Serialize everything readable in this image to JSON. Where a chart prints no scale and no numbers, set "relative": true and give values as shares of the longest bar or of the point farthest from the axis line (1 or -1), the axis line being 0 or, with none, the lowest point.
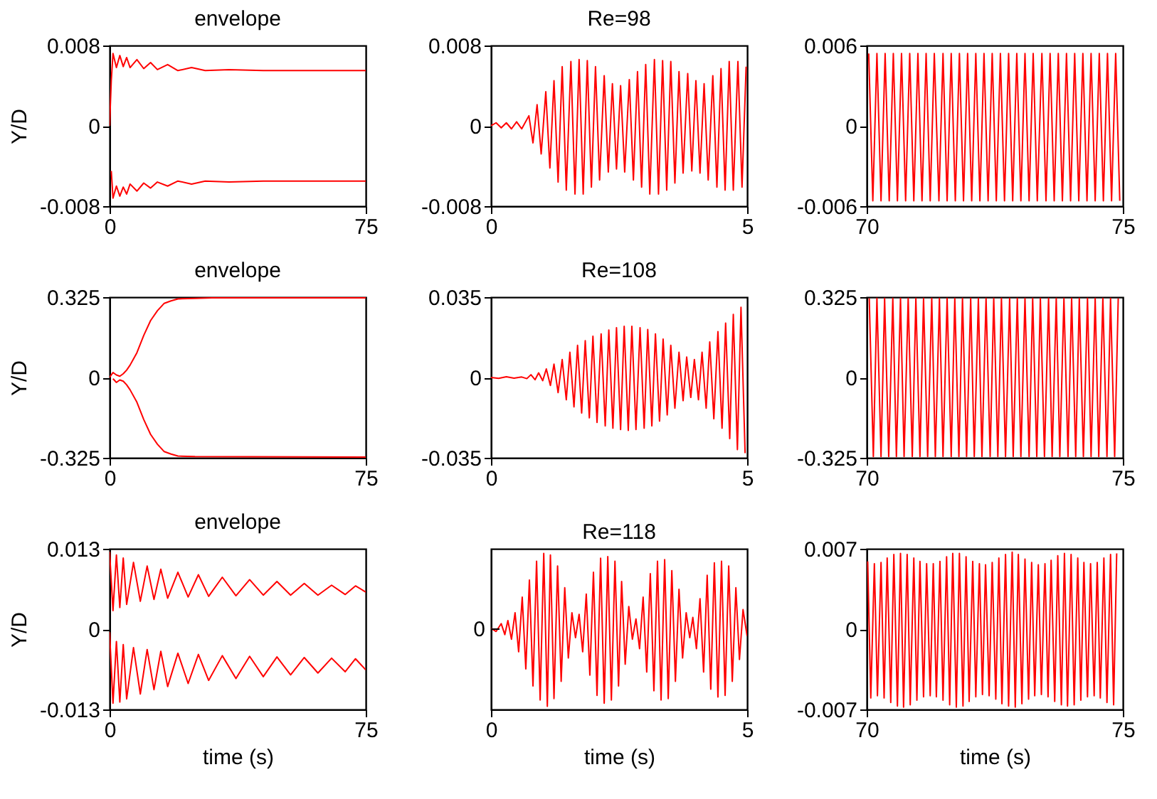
{
  "chart_data": [
    {
      "type": "line",
      "title": "envelope",
      "ylabel": "Y/D",
      "xlim": [
        0,
        75
      ],
      "ylim": [
        -0.008,
        0.008
      ],
      "xticks": [
        0,
        75
      ],
      "yticks": [
        -0.008,
        0,
        0.008
      ],
      "series": [
        {
          "color": "#ff0000",
          "x": [
            0,
            0.5,
            1,
            2,
            3,
            4,
            5,
            6,
            8,
            10,
            12,
            14,
            17,
            20,
            24,
            28,
            35,
            45,
            55,
            65,
            75
          ],
          "values": [
            0,
            0.0045,
            0.0072,
            0.0058,
            0.007,
            0.0059,
            0.0068,
            0.0058,
            0.0066,
            0.0057,
            0.0063,
            0.0056,
            0.0061,
            0.0055,
            0.0058,
            0.0055,
            0.0056,
            0.0055,
            0.0055,
            0.0055,
            0.0055
          ]
        },
        {
          "color": "#ff0000",
          "x": [
            0.5,
            1,
            2,
            3,
            4,
            5,
            6,
            8,
            10,
            12,
            14,
            17,
            20,
            24,
            28,
            35,
            45,
            75
          ],
          "values": [
            -0.0045,
            -0.0072,
            -0.006,
            -0.007,
            -0.0061,
            -0.0068,
            -0.0058,
            -0.0065,
            -0.0057,
            -0.0062,
            -0.0056,
            -0.006,
            -0.0055,
            -0.0058,
            -0.0055,
            -0.0056,
            -0.0055,
            -0.0055
          ]
        }
      ]
    },
    {
      "type": "line",
      "title": "Re=98",
      "xlim": [
        0,
        5
      ],
      "ylim": [
        -0.008,
        0.008
      ],
      "xticks": [
        0,
        5
      ],
      "yticks": [
        -0.008,
        0,
        0.008
      ],
      "series": [
        {
          "color": "#ff0000",
          "x": [
            0,
            0.1,
            0.2,
            0.3,
            0.4,
            0.5,
            0.6,
            0.74,
            0.82,
            0.9,
            0.98,
            1.07,
            1.15,
            1.23,
            1.31,
            1.39,
            1.47,
            1.56,
            1.64,
            1.72,
            1.8,
            1.88,
            1.96,
            2.04,
            2.12,
            2.21,
            2.29,
            2.37,
            2.45,
            2.53,
            2.61,
            2.7,
            2.78,
            2.86,
            2.94,
            3.02,
            3.1,
            3.19,
            3.27,
            3.35,
            3.43,
            3.51,
            3.59,
            3.67,
            3.75,
            3.84,
            3.92,
            4.0,
            4.08,
            4.16,
            4.24,
            4.33,
            4.41,
            4.49,
            4.57,
            4.65,
            4.73,
            4.82,
            4.9,
            4.98
          ],
          "values": [
            0,
            0.0003,
            -0.0002,
            0.0003,
            -0.0003,
            0.0004,
            -0.0003,
            0.001,
            -0.0017,
            0.0021,
            -0.0028,
            0.0034,
            -0.0042,
            0.0045,
            -0.0056,
            0.0059,
            -0.0064,
            0.0064,
            -0.0068,
            0.0066,
            -0.0068,
            0.0065,
            -0.0061,
            0.0059,
            -0.0054,
            0.005,
            -0.0046,
            0.0042,
            -0.0043,
            0.004,
            -0.0046,
            0.0046,
            -0.0054,
            0.0054,
            -0.0061,
            0.0061,
            -0.0068,
            0.0066,
            -0.0068,
            0.0065,
            -0.0064,
            0.0064,
            -0.0057,
            0.0054,
            -0.0047,
            0.0052,
            -0.0045,
            0.0045,
            -0.0047,
            0.0042,
            -0.0054,
            0.005,
            -0.0061,
            0.0057,
            -0.0064,
            0.0064,
            -0.0064,
            0.0064,
            -0.0061,
            0.0059
          ]
        }
      ]
    },
    {
      "type": "line",
      "xlim": [
        70,
        75
      ],
      "ylim": [
        -0.006,
        0.006
      ],
      "xticks": [
        70,
        75
      ],
      "yticks": [
        -0.006,
        0,
        0.006
      ],
      "series": [
        {
          "color": "#ff0000",
          "x": [
            70.04,
            70.12,
            70.2,
            70.28,
            70.36,
            70.44,
            70.52,
            70.6,
            70.68,
            70.76,
            70.84,
            70.92,
            71.0,
            71.08,
            71.16,
            71.24,
            71.32,
            71.41,
            71.49,
            71.57,
            71.65,
            71.73,
            71.81,
            71.89,
            71.97,
            72.05,
            72.13,
            72.21,
            72.29,
            72.37,
            72.45,
            72.53,
            72.61,
            72.69,
            72.77,
            72.85,
            72.93,
            73.01,
            73.09,
            73.17,
            73.25,
            73.33,
            73.42,
            73.5,
            73.58,
            73.66,
            73.74,
            73.82,
            73.9,
            73.98,
            74.06,
            74.14,
            74.22,
            74.3,
            74.38,
            74.46,
            74.54,
            74.62,
            74.7,
            74.78,
            74.86,
            74.94
          ],
          "values": [
            0.0054,
            -0.0056,
            0.0054,
            -0.0056,
            0.0054,
            -0.0056,
            0.0054,
            -0.0056,
            0.0054,
            -0.0056,
            0.0054,
            -0.0056,
            0.0054,
            -0.0056,
            0.0054,
            -0.0056,
            0.0054,
            -0.0056,
            0.0054,
            -0.0056,
            0.0054,
            -0.0056,
            0.0054,
            -0.0056,
            0.0054,
            -0.0056,
            0.0054,
            -0.0056,
            0.0054,
            -0.0056,
            0.0054,
            -0.0056,
            0.0054,
            -0.0056,
            0.0054,
            -0.0056,
            0.0054,
            -0.0056,
            0.0054,
            -0.0056,
            0.0054,
            -0.0056,
            0.0054,
            -0.0056,
            0.0054,
            -0.0056,
            0.0054,
            -0.0056,
            0.0054,
            -0.0056,
            0.0054,
            -0.0056,
            0.0054,
            -0.0056,
            0.0054,
            -0.0056,
            0.0054,
            -0.0056,
            0.0054,
            -0.0056,
            0.0054,
            -0.0056
          ]
        }
      ]
    },
    {
      "type": "line",
      "title": "envelope",
      "ylabel": "Y/D",
      "xlim": [
        0,
        75
      ],
      "ylim": [
        -0.325,
        0.325
      ],
      "xticks": [
        0,
        75
      ],
      "yticks": [
        -0.325,
        0,
        0.325
      ],
      "series": [
        {
          "color": "#ff0000",
          "x": [
            0,
            1,
            2,
            3,
            4,
            5,
            6,
            8,
            10,
            12,
            14,
            16,
            18,
            20,
            25,
            30,
            40,
            75
          ],
          "values": [
            0,
            0.02,
            0.01,
            0.005,
            0.015,
            0.03,
            0.05,
            0.1,
            0.17,
            0.23,
            0.27,
            0.3,
            0.31,
            0.318,
            0.32,
            0.322,
            0.322,
            0.322
          ]
        },
        {
          "color": "#ff0000",
          "x": [
            1,
            2,
            3,
            4,
            5,
            6,
            8,
            10,
            12,
            14,
            16,
            18,
            20,
            25,
            75
          ],
          "values": [
            -0.005,
            -0.02,
            -0.01,
            -0.015,
            -0.03,
            -0.05,
            -0.1,
            -0.17,
            -0.23,
            -0.27,
            -0.3,
            -0.31,
            -0.318,
            -0.32,
            -0.322
          ]
        }
      ]
    },
    {
      "type": "line",
      "title": "Re=108",
      "xlim": [
        0,
        5
      ],
      "ylim": [
        -0.035,
        0.035
      ],
      "xticks": [
        0,
        5
      ],
      "yticks": [
        -0.035,
        0,
        0.035
      ],
      "series": [
        {
          "color": "#ff0000",
          "x": [
            0,
            0.15,
            0.3,
            0.45,
            0.6,
            0.7,
            0.78,
            0.86,
            0.93,
            1.01,
            1.08,
            1.16,
            1.23,
            1.31,
            1.39,
            1.47,
            1.54,
            1.62,
            1.69,
            1.77,
            1.84,
            1.92,
            1.99,
            2.07,
            2.15,
            2.23,
            2.3,
            2.38,
            2.45,
            2.53,
            2.6,
            2.68,
            2.75,
            2.83,
            2.91,
            2.99,
            3.06,
            3.14,
            3.21,
            3.29,
            3.36,
            3.44,
            3.51,
            3.59,
            3.67,
            3.75,
            3.82,
            3.9,
            3.97,
            4.05,
            4.12,
            4.2,
            4.27,
            4.35,
            4.43,
            4.51,
            4.58,
            4.66,
            4.73,
            4.81,
            4.88,
            4.96
          ],
          "values": [
            0,
            -0.0004,
            0.0003,
            -0.0003,
            0.0002,
            -0.0005,
            0.0012,
            -0.001,
            0.002,
            -0.0014,
            0.0037,
            -0.0035,
            0.0058,
            -0.0066,
            0.0078,
            -0.0097,
            0.011,
            -0.0128,
            0.014,
            -0.0155,
            0.016,
            -0.0176,
            0.018,
            -0.0196,
            0.019,
            -0.0211,
            0.0207,
            -0.0221,
            0.0217,
            -0.0227,
            0.0223,
            -0.0231,
            0.0223,
            -0.0227,
            0.0217,
            -0.0221,
            0.0209,
            -0.0211,
            0.019,
            -0.019,
            0.0167,
            -0.0163,
            0.014,
            -0.0134,
            0.011,
            -0.0101,
            0.0089,
            -0.0087,
            0.0078,
            -0.0097,
            0.011,
            -0.0134,
            0.0155,
            -0.018,
            0.02,
            -0.0221,
            0.0237,
            -0.0266,
            0.0275,
            -0.0314,
            0.0306,
            -0.033
          ]
        }
      ]
    },
    {
      "type": "line",
      "xlim": [
        70,
        75
      ],
      "ylim": [
        -0.325,
        0.325
      ],
      "xticks": [
        70,
        75
      ],
      "yticks": [
        -0.325,
        0,
        0.325
      ],
      "series": [
        {
          "color": "#ff0000",
          "x": [
            70.05,
            70.13,
            70.2,
            70.28,
            70.35,
            70.43,
            70.51,
            70.58,
            70.66,
            70.73,
            70.81,
            70.89,
            70.96,
            71.04,
            71.11,
            71.19,
            71.27,
            71.34,
            71.42,
            71.49,
            71.57,
            71.65,
            71.72,
            71.8,
            71.87,
            71.95,
            72.03,
            72.1,
            72.18,
            72.25,
            72.33,
            72.41,
            72.48,
            72.56,
            72.63,
            72.71,
            72.79,
            72.86,
            72.94,
            73.01,
            73.09,
            73.17,
            73.24,
            73.32,
            73.39,
            73.47,
            73.55,
            73.62,
            73.7,
            73.77,
            73.85,
            73.93,
            74.0,
            74.08,
            74.15,
            74.23,
            74.31,
            74.38,
            74.46,
            74.53,
            74.61,
            74.69,
            74.76,
            74.84,
            74.91
          ],
          "values": [
            0.32,
            -0.32,
            0.32,
            -0.32,
            0.32,
            -0.32,
            0.32,
            -0.32,
            0.32,
            -0.32,
            0.32,
            -0.32,
            0.32,
            -0.32,
            0.32,
            -0.32,
            0.32,
            -0.32,
            0.32,
            -0.32,
            0.32,
            -0.32,
            0.32,
            -0.32,
            0.32,
            -0.32,
            0.32,
            -0.32,
            0.32,
            -0.32,
            0.32,
            -0.32,
            0.32,
            -0.32,
            0.32,
            -0.32,
            0.32,
            -0.32,
            0.32,
            -0.32,
            0.32,
            -0.32,
            0.32,
            -0.32,
            0.32,
            -0.32,
            0.32,
            -0.32,
            0.32,
            -0.32,
            0.32,
            -0.32,
            0.32,
            -0.32,
            0.32,
            -0.32,
            0.32,
            -0.32,
            0.32,
            -0.32,
            0.32,
            -0.32,
            0.32,
            -0.32,
            0.32
          ]
        }
      ]
    },
    {
      "type": "line",
      "title": "envelope",
      "ylabel": "Y/D",
      "xlabel": "time (s)",
      "xlim": [
        0,
        75
      ],
      "ylim": [
        -0.013,
        0.013
      ],
      "xticks": [
        0,
        75
      ],
      "yticks": [
        -0.013,
        0,
        0.013
      ],
      "series": [
        {
          "color": "#ff0000",
          "x": [
            0,
            1,
            2,
            3,
            4,
            5,
            7,
            9,
            11,
            13,
            15,
            17,
            20,
            23,
            26,
            29,
            33,
            37,
            41,
            45,
            49,
            53,
            57,
            61,
            65,
            69,
            72,
            75
          ],
          "values": [
            0.0125,
            0.003,
            0.012,
            0.0035,
            0.0115,
            0.004,
            0.0108,
            0.0045,
            0.0102,
            0.0048,
            0.0097,
            0.005,
            0.0092,
            0.0052,
            0.0088,
            0.0053,
            0.0084,
            0.0054,
            0.008,
            0.0055,
            0.0077,
            0.0055,
            0.0074,
            0.0055,
            0.0071,
            0.0056,
            0.007,
            0.006
          ]
        },
        {
          "color": "#ff0000",
          "x": [
            0,
            1,
            2,
            3,
            4,
            5,
            7,
            9,
            11,
            13,
            15,
            17,
            20,
            23,
            26,
            29,
            33,
            37,
            41,
            45,
            49,
            53,
            57,
            61,
            65,
            69,
            72,
            75
          ],
          "values": [
            -0.0005,
            -0.012,
            -0.002,
            -0.0118,
            -0.0025,
            -0.0113,
            -0.003,
            -0.0105,
            -0.0033,
            -0.0098,
            -0.0036,
            -0.0093,
            -0.0039,
            -0.0088,
            -0.0041,
            -0.0083,
            -0.0043,
            -0.008,
            -0.0044,
            -0.0077,
            -0.0045,
            -0.0074,
            -0.0046,
            -0.0071,
            -0.0047,
            -0.0069,
            -0.0048,
            -0.0066
          ]
        }
      ]
    },
    {
      "type": "line",
      "title": "Re=118",
      "xlabel": "time (s)",
      "relative": true,
      "xlim": [
        0,
        5
      ],
      "xticks": [
        0,
        5
      ],
      "annotations": [
        "0"
      ],
      "series": [
        {
          "color": "#ff0000",
          "x": [
            0,
            0.1,
            0.2,
            0.27,
            0.33,
            0.4,
            0.47,
            0.54,
            0.61,
            0.68,
            0.75,
            0.82,
            0.89,
            0.96,
            1.03,
            1.1,
            1.16,
            1.23,
            1.3,
            1.37,
            1.44,
            1.51,
            1.58,
            1.65,
            1.72,
            1.79,
            1.86,
            1.93,
            2.0,
            2.07,
            2.14,
            2.21,
            2.28,
            2.35,
            2.42,
            2.49,
            2.55,
            2.62,
            2.69,
            2.76,
            2.83,
            2.9,
            2.97,
            3.04,
            3.11,
            3.18,
            3.25,
            3.32,
            3.39,
            3.46,
            3.53,
            3.6,
            3.67,
            3.74,
            3.81,
            3.88,
            3.94,
            4.01,
            4.08,
            4.15,
            4.22,
            4.29,
            4.36,
            4.43,
            4.5,
            4.57,
            4.64,
            4.71,
            4.78,
            4.85,
            4.92,
            5.0
          ],
          "values": [
            0.52,
            0.5,
            0.55,
            0.48,
            0.57,
            0.45,
            0.62,
            0.37,
            0.72,
            0.26,
            0.83,
            0.15,
            0.95,
            0.06,
            1.0,
            0.02,
            0.99,
            0.07,
            0.92,
            0.18,
            0.78,
            0.33,
            0.62,
            0.46,
            0.61,
            0.37,
            0.74,
            0.22,
            0.88,
            0.09,
            0.97,
            0.04,
            0.98,
            0.06,
            0.95,
            0.15,
            0.82,
            0.29,
            0.66,
            0.45,
            0.58,
            0.39,
            0.72,
            0.24,
            0.87,
            0.12,
            0.95,
            0.06,
            0.96,
            0.07,
            0.89,
            0.18,
            0.77,
            0.33,
            0.62,
            0.46,
            0.59,
            0.39,
            0.71,
            0.24,
            0.86,
            0.13,
            0.94,
            0.08,
            0.95,
            0.09,
            0.92,
            0.18,
            0.78,
            0.32,
            0.64,
            0.47
          ]
        }
      ]
    },
    {
      "type": "line",
      "xlabel": "time (s)",
      "xlim": [
        70,
        75
      ],
      "ylim": [
        -0.007,
        0.007
      ],
      "xticks": [
        70,
        75
      ],
      "yticks": [
        -0.007,
        0,
        0.007
      ],
      "series": [
        {
          "color": "#ff0000",
          "x": [
            70.02,
            70.08,
            70.15,
            70.21,
            70.28,
            70.34,
            70.4,
            70.47,
            70.53,
            70.6,
            70.66,
            70.72,
            70.79,
            70.85,
            70.92,
            70.98,
            71.04,
            71.11,
            71.17,
            71.24,
            71.3,
            71.36,
            71.43,
            71.49,
            71.56,
            71.62,
            71.68,
            71.75,
            71.81,
            71.88,
            71.94,
            72.0,
            72.07,
            72.13,
            72.2,
            72.26,
            72.32,
            72.39,
            72.45,
            72.52,
            72.58,
            72.64,
            72.71,
            72.77,
            72.84,
            72.9,
            72.96,
            73.03,
            73.09,
            73.16,
            73.22,
            73.28,
            73.35,
            73.41,
            73.48,
            73.54,
            73.6,
            73.67,
            73.73,
            73.8,
            73.86,
            73.92,
            73.99,
            74.05,
            74.12,
            74.18,
            74.24,
            74.31,
            74.37,
            74.44,
            74.5,
            74.56,
            74.63,
            74.69,
            74.76,
            74.82,
            74.88
          ],
          "values": [
            0.0059,
            -0.006,
            0.0057,
            -0.0058,
            0.0058,
            -0.006,
            0.0062,
            -0.0064,
            0.0065,
            -0.0067,
            0.0066,
            -0.0068,
            0.0065,
            -0.0066,
            0.0062,
            -0.0062,
            0.0059,
            -0.0059,
            0.0057,
            -0.0058,
            0.0057,
            -0.0059,
            0.0059,
            -0.0062,
            0.0063,
            -0.0066,
            0.0066,
            -0.0068,
            0.0066,
            -0.0067,
            0.0063,
            -0.0063,
            0.0059,
            -0.0059,
            0.0057,
            -0.0057,
            0.0056,
            -0.0058,
            0.0058,
            -0.0061,
            0.0062,
            -0.0065,
            0.0065,
            -0.0067,
            0.0067,
            -0.0068,
            0.0065,
            -0.0065,
            0.0061,
            -0.0061,
            0.0058,
            -0.0058,
            0.0056,
            -0.0057,
            0.0057,
            -0.0059,
            0.006,
            -0.0063,
            0.0064,
            -0.0066,
            0.0066,
            -0.0067,
            0.0065,
            -0.0066,
            0.0062,
            -0.0062,
            0.0058,
            -0.0059,
            0.0057,
            -0.0058,
            0.0058,
            -0.006,
            0.0062,
            -0.0064,
            0.0065,
            -0.0066,
            0.0066
          ]
        }
      ]
    }
  ]
}
